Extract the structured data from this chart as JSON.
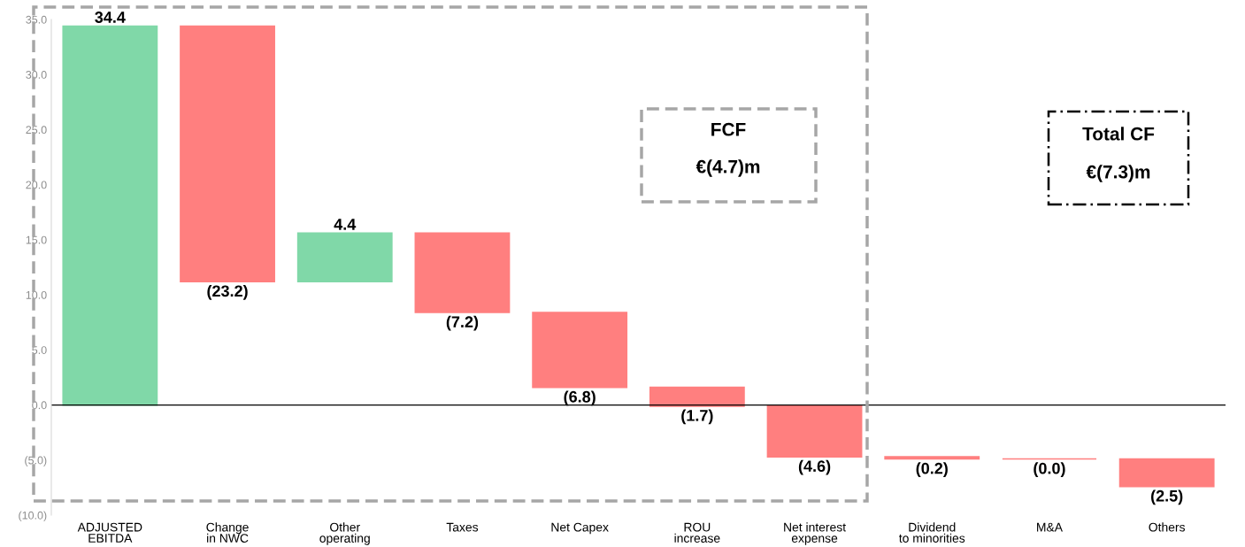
{
  "chart_data": {
    "type": "bar",
    "categories": [
      "ADJUSTED\nEBITDA",
      "Change\nin NWC",
      "Other\noperating",
      "Taxes",
      "Net Capex",
      "ROU\nincrease",
      "Net interest\nexpense",
      "Dividend\nto minorities",
      "M&A",
      "Others"
    ],
    "values": [
      34.4,
      -23.2,
      4.4,
      -7.2,
      -6.8,
      -1.7,
      -4.6,
      -0.2,
      0.0,
      -2.5
    ],
    "base": [
      0,
      34.4,
      11.2,
      15.6,
      8.4,
      1.6,
      -0.1,
      -4.7,
      -4.9,
      -4.9
    ],
    "colors": [
      "#80d8a8",
      "#ff7f7f",
      "#80d8a8",
      "#ff7f7f",
      "#ff7f7f",
      "#ff7f7f",
      "#ff7f7f",
      "#ff7f7f",
      "#ff7f7f",
      "#ff7f7f"
    ],
    "value_labels": [
      "34.4",
      "(23.2)",
      "4.4",
      "(7.2)",
      "(6.8)",
      "(1.7)",
      "(4.6)",
      "(0.2)",
      "(0.0)",
      "(2.5)"
    ],
    "ylim": [
      -10,
      35
    ],
    "yticks": [
      {
        "value": -10,
        "label": "(10.0)"
      },
      {
        "value": -5,
        "label": "(5.0)"
      },
      {
        "value": 0,
        "label": "0.0"
      },
      {
        "value": 5,
        "label": "5.0"
      },
      {
        "value": 10,
        "label": "10.0"
      },
      {
        "value": 15,
        "label": "15.0"
      },
      {
        "value": 20,
        "label": "20.0"
      },
      {
        "value": 25,
        "label": "25.0"
      },
      {
        "value": 30,
        "label": "30.0"
      },
      {
        "value": 35,
        "label": "35.0"
      }
    ],
    "ref_lines": [
      {
        "axis": "y",
        "value": 0,
        "color": "#000000"
      }
    ],
    "grid": false,
    "annotations": [
      "FCF",
      "€(4.7)m",
      "Total CF",
      "€(7.3)m"
    ]
  }
}
